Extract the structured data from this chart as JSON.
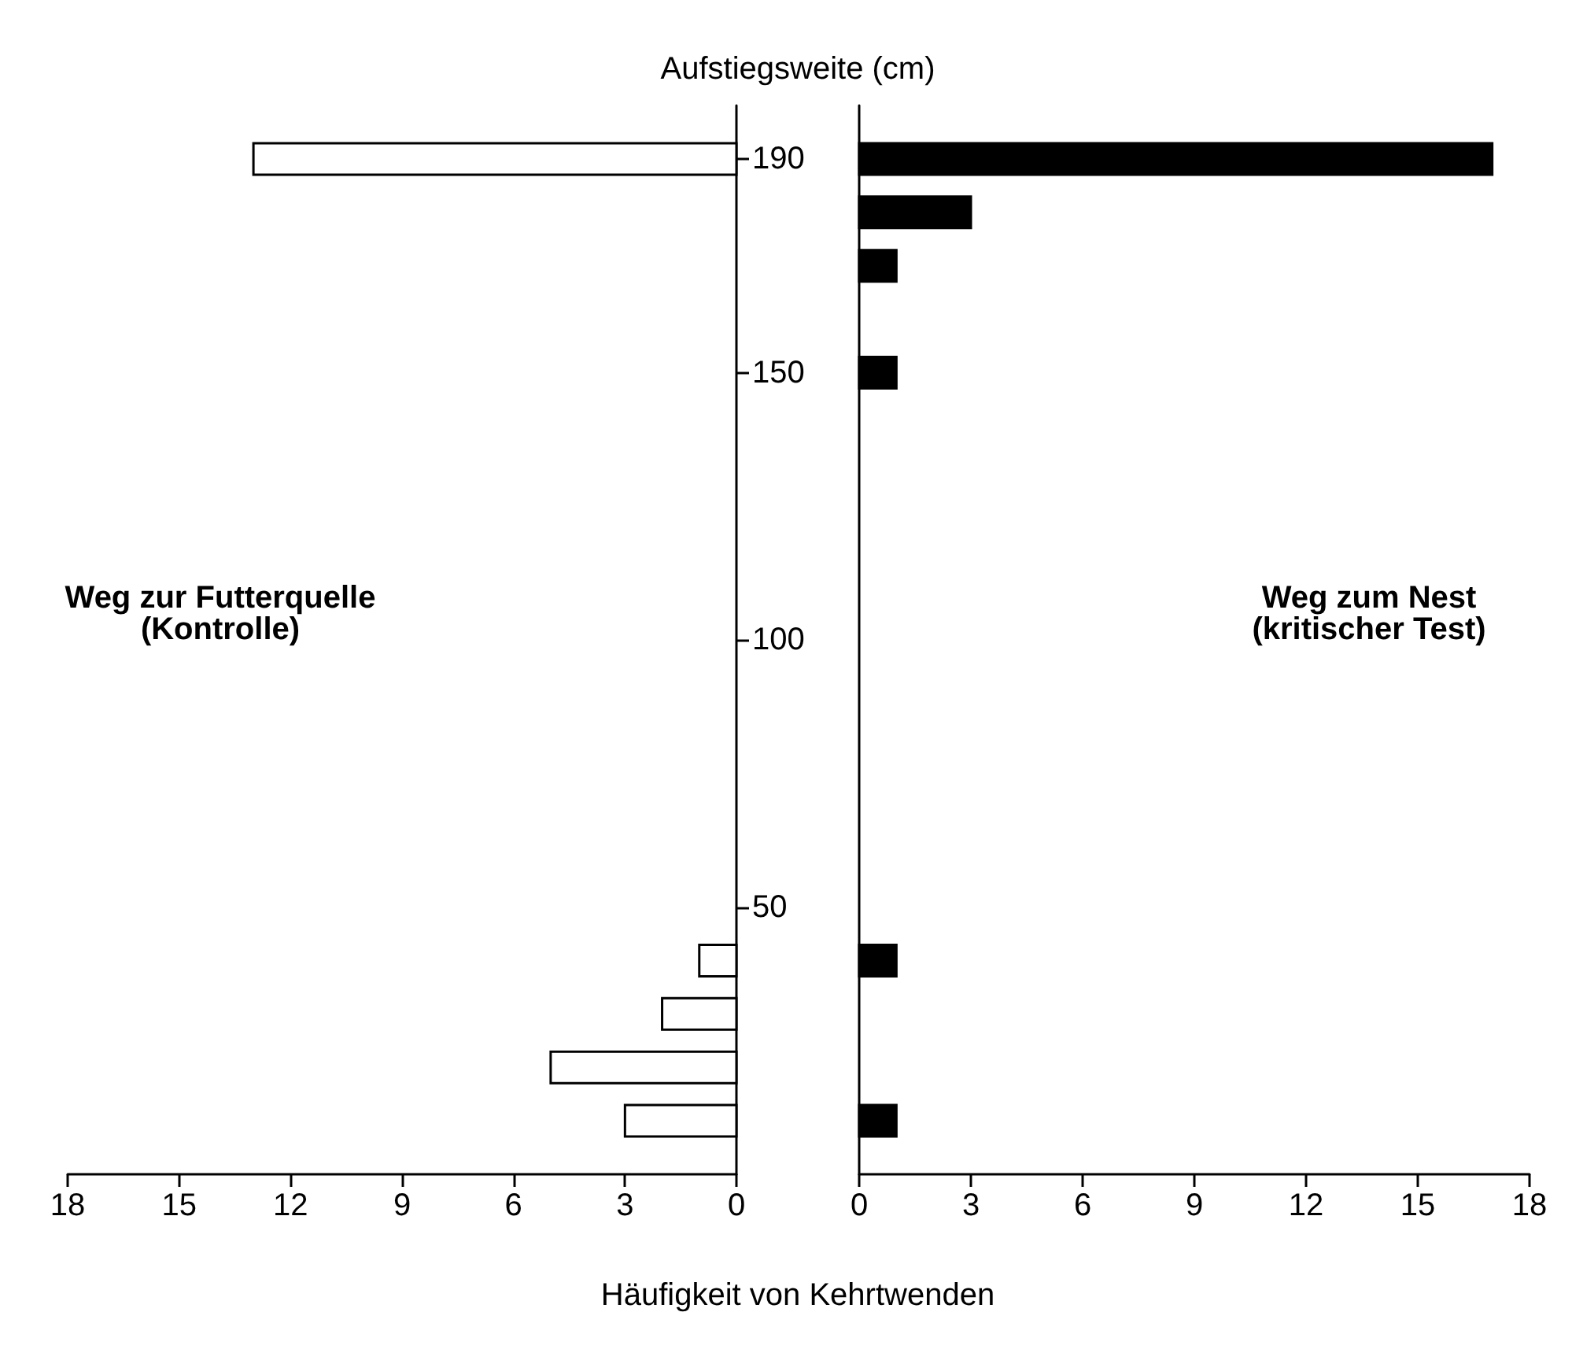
{
  "chart_data": [
    {
      "type": "bar",
      "orientation": "horizontal",
      "ylabel": "Aufstiegsweite (cm)",
      "xlabel": "Häufigkeit von Kehrtwenden",
      "xlim": [
        18,
        0
      ],
      "xticks": [
        18,
        15,
        12,
        9,
        6,
        3,
        0
      ],
      "ylim": [
        0,
        200
      ],
      "yticks": [
        50,
        100,
        150,
        190
      ],
      "legend": false,
      "grid": false,
      "series": [
        {
          "name": "Weg zur Futterquelle\n(Kontrolle)",
          "color": "#ffffff",
          "x": [
            10,
            20,
            30,
            40,
            190
          ],
          "values": [
            3,
            5,
            2,
            1,
            13
          ]
        }
      ]
    },
    {
      "type": "bar",
      "orientation": "horizontal",
      "xlim": [
        0,
        18
      ],
      "xticks": [
        0,
        3,
        6,
        9,
        12,
        15,
        18
      ],
      "ylim": [
        0,
        200
      ],
      "tick_labels": "x",
      "legend": false,
      "grid": false,
      "series": [
        {
          "name": "Weg zum Nest\n(kritischer Test)",
          "color": "#000000",
          "x": [
            10,
            40,
            150,
            170,
            180,
            190
          ],
          "values": [
            1,
            1,
            1,
            1,
            3,
            17
          ]
        }
      ]
    }
  ]
}
